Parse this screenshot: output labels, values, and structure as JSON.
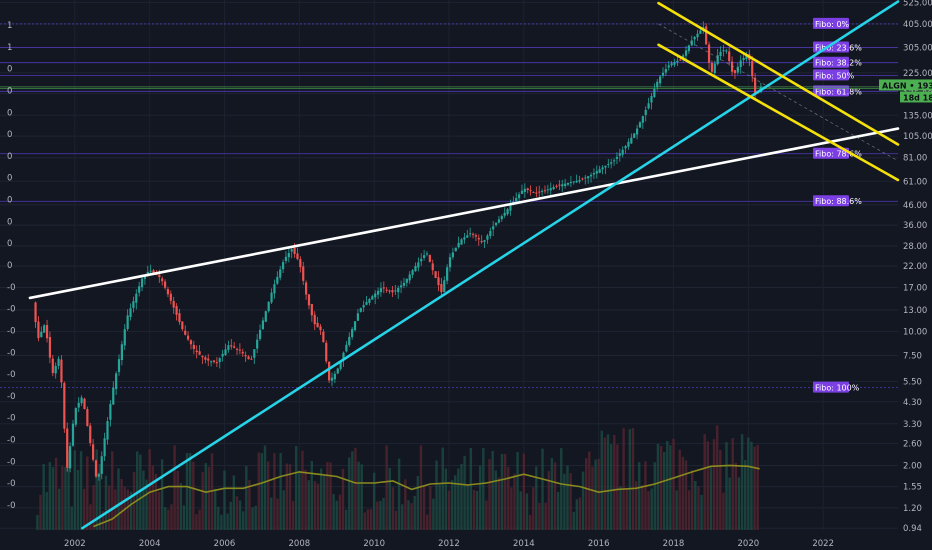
{
  "chart_data": {
    "type": "candlestick",
    "title": "",
    "symbol": "ALGN",
    "last_price_label": "193.19",
    "countdown_label": "18d 18h",
    "y_axis": {
      "scale": "log",
      "ylim": [
        0.92,
        540
      ],
      "tick_labels": [
        "525.00",
        "405.00",
        "305.00",
        "225.00",
        "175.00",
        "135.00",
        "105.00",
        "81.00",
        "61.00",
        "46.00",
        "36.00",
        "28.00",
        "22.00",
        "17.00",
        "13.00",
        "10.00",
        "7.50",
        "5.50",
        "4.30",
        "3.30",
        "2.60",
        "2.00",
        "1.55",
        "1.20",
        "0.94"
      ],
      "tick_values": [
        525,
        405,
        305,
        225,
        175,
        135,
        105,
        81,
        61,
        46,
        36,
        28,
        22,
        17,
        13,
        10,
        7.5,
        5.5,
        4.3,
        3.3,
        2.6,
        2.0,
        1.55,
        1.2,
        0.94
      ]
    },
    "x_axis": {
      "tick_labels": [
        "2002",
        "2004",
        "2006",
        "2008",
        "2010",
        "2012",
        "2014",
        "2016",
        "2018",
        "2020",
        "2022"
      ],
      "tick_values": [
        2002,
        2004,
        2006,
        2008,
        2010,
        2012,
        2014,
        2016,
        2018,
        2020,
        2022
      ],
      "xlim": [
        2000.0,
        2024.0
      ]
    },
    "left_axis_labels": [
      "1",
      "1",
      "0",
      "0",
      "0",
      "0",
      "0",
      "0",
      "0",
      "0",
      "0",
      "0",
      "-0",
      "-0",
      "-0",
      "-0",
      "-0",
      "-0",
      "-0",
      "-0",
      "-0",
      "-0",
      "-0"
    ],
    "fibonacci": [
      {
        "label": "Fibo:  0%",
        "price": 405
      },
      {
        "label": "Fibo: 23.6%",
        "price": 305
      },
      {
        "label": "Fibo: 38.2%",
        "price": 254
      },
      {
        "label": "Fibo:  50%",
        "price": 218
      },
      {
        "label": "Fibo: 61.8%",
        "price": 180
      },
      {
        "label": "Fibo: 78.6%",
        "price": 85
      },
      {
        "label": "Fibo: 88.6%",
        "price": 48
      },
      {
        "label": "Fibo: 100%",
        "price": 5.1
      }
    ],
    "trendlines": [
      {
        "name": "white",
        "color": "#ffffff",
        "points": [
          [
            2000.8,
            15
          ],
          [
            2024.0,
            115
          ]
        ]
      },
      {
        "name": "cyan",
        "color": "#26d4e8",
        "points": [
          [
            2002.2,
            0.94
          ],
          [
            2024.0,
            530
          ]
        ]
      },
      {
        "name": "yellow-upper",
        "color": "#f5e10a",
        "points": [
          [
            2017.6,
            520
          ],
          [
            2024.0,
            95
          ]
        ]
      },
      {
        "name": "yellow-lower",
        "color": "#f5e10a",
        "points": [
          [
            2017.6,
            315
          ],
          [
            2024.0,
            62
          ]
        ]
      }
    ],
    "price_path": [
      [
        2000.9,
        14
      ],
      [
        2001.0,
        9
      ],
      [
        2001.2,
        11
      ],
      [
        2001.4,
        6
      ],
      [
        2001.6,
        7.5
      ],
      [
        2001.7,
        3.5
      ],
      [
        2001.8,
        1.9
      ],
      [
        2001.9,
        2.8
      ],
      [
        2002.0,
        3.9
      ],
      [
        2002.2,
        4.6
      ],
      [
        2002.4,
        2.7
      ],
      [
        2002.6,
        1.6
      ],
      [
        2002.8,
        2.8
      ],
      [
        2003.0,
        4.8
      ],
      [
        2003.2,
        7.5
      ],
      [
        2003.4,
        12
      ],
      [
        2003.6,
        15
      ],
      [
        2003.8,
        19
      ],
      [
        2004.0,
        21
      ],
      [
        2004.3,
        19
      ],
      [
        2004.6,
        14
      ],
      [
        2004.9,
        10
      ],
      [
        2005.2,
        8
      ],
      [
        2005.5,
        7.1
      ],
      [
        2005.8,
        6.9
      ],
      [
        2006.1,
        8.5
      ],
      [
        2006.4,
        8
      ],
      [
        2006.7,
        7
      ],
      [
        2007.0,
        11
      ],
      [
        2007.3,
        17
      ],
      [
        2007.6,
        24
      ],
      [
        2007.8,
        27
      ],
      [
        2008.0,
        23
      ],
      [
        2008.2,
        15
      ],
      [
        2008.4,
        11
      ],
      [
        2008.6,
        10
      ],
      [
        2008.8,
        5.5
      ],
      [
        2009.0,
        6.2
      ],
      [
        2009.3,
        9
      ],
      [
        2009.6,
        13
      ],
      [
        2009.9,
        15
      ],
      [
        2010.2,
        17
      ],
      [
        2010.5,
        16
      ],
      [
        2010.8,
        18
      ],
      [
        2011.1,
        22
      ],
      [
        2011.4,
        26
      ],
      [
        2011.6,
        20
      ],
      [
        2011.8,
        16
      ],
      [
        2012.0,
        24
      ],
      [
        2012.3,
        30
      ],
      [
        2012.6,
        33
      ],
      [
        2012.9,
        29
      ],
      [
        2013.2,
        36
      ],
      [
        2013.5,
        42
      ],
      [
        2013.8,
        50
      ],
      [
        2014.0,
        56
      ],
      [
        2014.3,
        53
      ],
      [
        2014.6,
        55
      ],
      [
        2014.9,
        58
      ],
      [
        2015.2,
        60
      ],
      [
        2015.5,
        62
      ],
      [
        2015.8,
        66
      ],
      [
        2016.1,
        72
      ],
      [
        2016.4,
        78
      ],
      [
        2016.7,
        92
      ],
      [
        2017.0,
        112
      ],
      [
        2017.3,
        150
      ],
      [
        2017.6,
        210
      ],
      [
        2017.9,
        250
      ],
      [
        2018.2,
        265
      ],
      [
        2018.5,
        335
      ],
      [
        2018.8,
        390
      ],
      [
        2019.0,
        220
      ],
      [
        2019.2,
        285
      ],
      [
        2019.4,
        300
      ],
      [
        2019.6,
        215
      ],
      [
        2019.8,
        262
      ],
      [
        2020.0,
        282
      ],
      [
        2020.2,
        168
      ],
      [
        2020.35,
        193
      ]
    ],
    "volume_ma": [
      [
        2002.5,
        0.96
      ],
      [
        2003.0,
        1.05
      ],
      [
        2003.5,
        1.25
      ],
      [
        2004.0,
        1.45
      ],
      [
        2004.5,
        1.55
      ],
      [
        2005.0,
        1.55
      ],
      [
        2005.5,
        1.45
      ],
      [
        2006.0,
        1.52
      ],
      [
        2006.5,
        1.52
      ],
      [
        2007.0,
        1.62
      ],
      [
        2007.5,
        1.75
      ],
      [
        2008.0,
        1.85
      ],
      [
        2008.5,
        1.8
      ],
      [
        2009.0,
        1.75
      ],
      [
        2009.5,
        1.62
      ],
      [
        2010.0,
        1.62
      ],
      [
        2010.5,
        1.66
      ],
      [
        2011.0,
        1.5
      ],
      [
        2011.5,
        1.6
      ],
      [
        2012.0,
        1.62
      ],
      [
        2012.5,
        1.58
      ],
      [
        2013.0,
        1.62
      ],
      [
        2013.5,
        1.7
      ],
      [
        2014.0,
        1.8
      ],
      [
        2014.5,
        1.7
      ],
      [
        2015.0,
        1.6
      ],
      [
        2015.5,
        1.55
      ],
      [
        2016.0,
        1.45
      ],
      [
        2016.5,
        1.5
      ],
      [
        2017.0,
        1.52
      ],
      [
        2017.5,
        1.6
      ],
      [
        2018.0,
        1.72
      ],
      [
        2018.5,
        1.85
      ],
      [
        2019.0,
        1.98
      ],
      [
        2019.5,
        2.0
      ],
      [
        2020.0,
        1.98
      ],
      [
        2020.3,
        1.92
      ]
    ]
  }
}
